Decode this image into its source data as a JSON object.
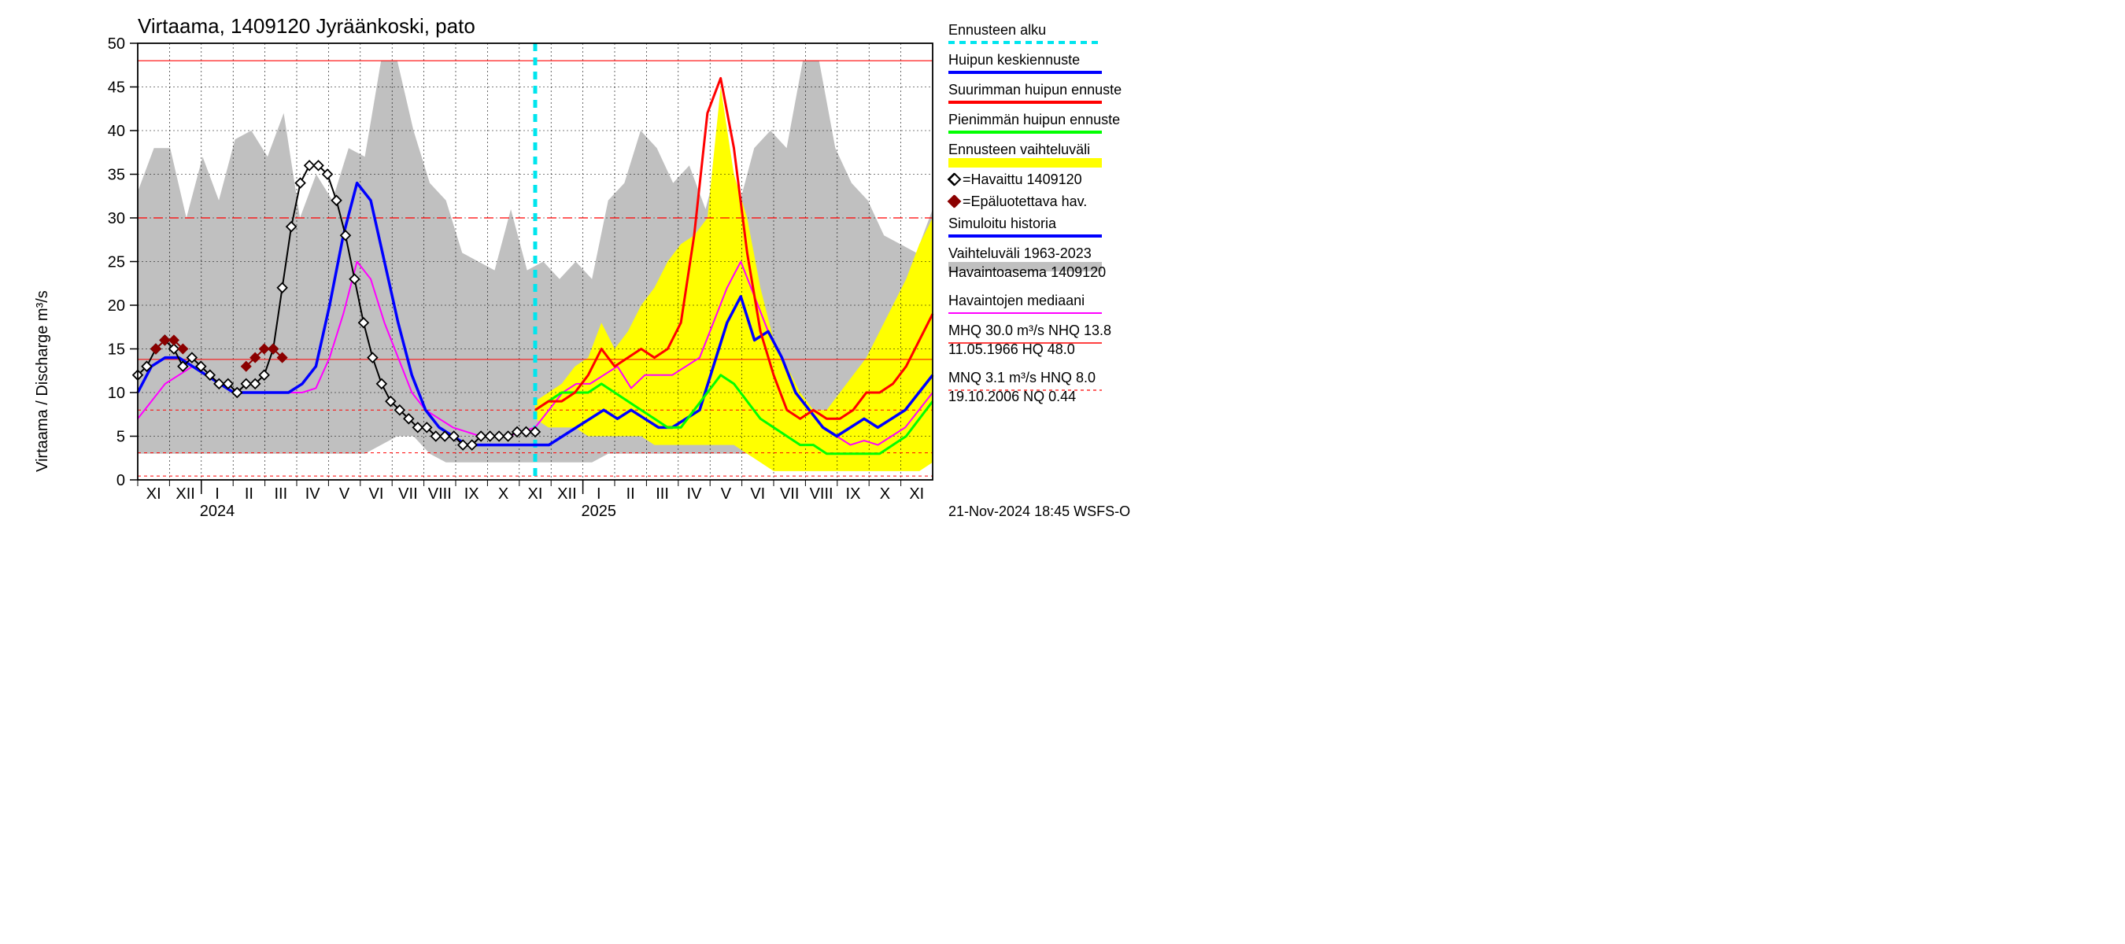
{
  "chart": {
    "type": "line",
    "title": "Virtaama, 1409120 Jyräänkoski, pato",
    "ylabel": "Virtaama / Discharge    m³/s",
    "title_fontsize": 26,
    "label_fontsize": 20,
    "tick_fontsize": 20,
    "legend_fontsize": 18,
    "background_color": "#ffffff",
    "plot_background": "#ffffff",
    "grid_color": "#000000",
    "grid_dash": "2,3",
    "axis_color": "#000000",
    "ylim": [
      0,
      50
    ],
    "ytick_step": 5,
    "yticks": [
      0,
      5,
      10,
      15,
      20,
      25,
      30,
      35,
      40,
      45,
      50
    ],
    "xticks_months": [
      "XI",
      "XII",
      "I",
      "II",
      "III",
      "IV",
      "V",
      "VI",
      "VII",
      "VIII",
      "IX",
      "X",
      "XI",
      "XII",
      "I",
      "II",
      "III",
      "IV",
      "V",
      "VI",
      "VII",
      "VIII",
      "IX",
      "X",
      "XI"
    ],
    "year_labels": {
      "2024": 3,
      "2025": 15
    },
    "forecast_start_index": 12.5,
    "reference_lines": {
      "HQ": {
        "value": 48.0,
        "color": "#ff0000",
        "dash": "none",
        "width": 1.2
      },
      "MHQ": {
        "value": 30.0,
        "color": "#ff0000",
        "dash": "12,8",
        "width": 1.2
      },
      "NHQ": {
        "value": 13.8,
        "color": "#ff0000",
        "dash": "none",
        "width": 1.0
      },
      "HNQ": {
        "value": 8.0,
        "color": "#ff0000",
        "dash": "4,4",
        "width": 1.0
      },
      "MNQ": {
        "value": 3.1,
        "color": "#ff0000",
        "dash": "4,4",
        "width": 1.0
      },
      "NQ": {
        "value": 0.44,
        "color": "#ff0000",
        "dash": "4,4",
        "width": 1.0
      }
    },
    "series": {
      "historical_range": {
        "color": "#c0c0c0",
        "upper": [
          33,
          38,
          38,
          30,
          37,
          32,
          39,
          40,
          37,
          42,
          30,
          35,
          32,
          38,
          37,
          48,
          48,
          40,
          34,
          32,
          26,
          25,
          24,
          31,
          24,
          25,
          23,
          25,
          23,
          32,
          34,
          40,
          38,
          34,
          36,
          31,
          38,
          31,
          38,
          40,
          38,
          48,
          48,
          38,
          34,
          32,
          28,
          27,
          26,
          31
        ],
        "lower": [
          3,
          3,
          3,
          3,
          3,
          3,
          3,
          3,
          3,
          3,
          3,
          3,
          3,
          3,
          3,
          4,
          5,
          5,
          3,
          2,
          2,
          2,
          2,
          2,
          2,
          2,
          2,
          2,
          2,
          3,
          3,
          3,
          3,
          3,
          3,
          3,
          3,
          3,
          3,
          3,
          4,
          5,
          5,
          3,
          2,
          2,
          2,
          2,
          2,
          2
        ]
      },
      "forecast_range": {
        "color": "#ffff00",
        "start_index": 25,
        "upper": [
          9,
          10,
          11,
          13,
          14,
          18,
          15,
          17,
          20,
          22,
          25,
          27,
          28,
          30,
          45,
          35,
          30,
          22,
          16,
          13,
          10,
          8,
          8,
          10,
          12,
          14,
          17,
          20,
          23,
          27,
          30
        ],
        "lower": [
          7,
          6,
          6,
          6,
          5,
          5,
          5,
          5,
          5,
          4,
          4,
          4,
          4,
          4,
          4,
          4,
          3,
          2,
          1,
          1,
          1,
          1,
          1,
          1,
          1,
          1,
          1,
          1,
          1,
          1,
          2
        ]
      },
      "simulated_history": {
        "color": "#0000ff",
        "width": 3.5,
        "data": [
          10,
          13,
          14,
          14,
          13,
          12,
          11,
          10,
          10,
          10,
          10,
          10,
          11,
          13,
          20,
          28,
          34,
          32,
          25,
          18,
          12,
          8,
          6,
          5,
          4,
          4,
          4,
          4,
          4,
          4,
          4,
          5,
          6,
          7,
          8,
          7,
          8,
          7,
          6,
          6,
          7,
          8,
          13,
          18,
          21,
          16,
          17,
          14,
          10,
          8,
          6,
          5,
          6,
          7,
          6,
          7,
          8,
          10,
          12
        ]
      },
      "median_obs": {
        "color": "#ff00ff",
        "width": 2,
        "data": [
          7,
          9,
          11,
          12,
          13,
          12,
          11,
          10,
          10,
          10,
          10,
          10,
          10,
          10.5,
          14,
          19,
          25,
          23,
          18,
          14,
          10,
          8,
          7,
          6,
          5.5,
          5,
          5,
          5,
          5.5,
          6,
          8,
          10,
          11,
          11,
          12,
          13,
          10.5,
          12,
          12,
          12,
          13,
          14,
          18,
          22,
          25,
          21,
          17,
          14,
          10,
          8,
          6,
          5,
          4,
          4.5,
          4,
          5,
          6,
          8,
          10
        ]
      },
      "peak_forecast_mean": {
        "color": "#0000ff",
        "width": 3.5,
        "start_index": 25,
        "data": [
          7,
          8,
          7,
          8,
          7,
          6,
          6,
          7,
          8,
          13,
          18,
          21,
          16,
          17,
          14,
          10,
          8,
          6,
          5,
          6,
          7,
          6,
          7,
          8,
          10,
          12
        ]
      },
      "peak_forecast_max": {
        "color": "#ff0000",
        "width": 3,
        "start_index": 25,
        "data": [
          8,
          9,
          9,
          10,
          12,
          15,
          13,
          14,
          15,
          14,
          15,
          18,
          28,
          42,
          46,
          38,
          26,
          17,
          12,
          8,
          7,
          8,
          7,
          7,
          8,
          10,
          10,
          11,
          13,
          16,
          19
        ]
      },
      "peak_forecast_min": {
        "color": "#00ff00",
        "width": 3,
        "start_index": 25,
        "data": [
          8,
          9,
          10,
          10,
          10,
          11,
          10,
          9,
          8,
          7,
          6,
          6,
          8,
          10,
          12,
          11,
          9,
          7,
          6,
          5,
          4,
          4,
          3,
          3,
          3,
          3,
          3,
          4,
          5,
          7,
          9
        ]
      },
      "observed": {
        "color": "#000000",
        "marker": "diamond",
        "marker_size": 6,
        "width": 2,
        "data": [
          12,
          13,
          15,
          16,
          15,
          13,
          14,
          13,
          12,
          11,
          11,
          10,
          11,
          11,
          12,
          15,
          22,
          29,
          34,
          36,
          36,
          35,
          32,
          28,
          23,
          18,
          14,
          11,
          9,
          8,
          7,
          6,
          6,
          5,
          5,
          5,
          4,
          4,
          5,
          5,
          5,
          5,
          5.5,
          5.5,
          5.5
        ]
      },
      "unreliable": {
        "color": "#8b0000",
        "marker": "diamond",
        "marker_size": 6,
        "width": 2,
        "segments": [
          {
            "start": 2,
            "data": [
              15,
              16,
              16,
              15
            ]
          },
          {
            "start": 12,
            "data": [
              13,
              14,
              15,
              15,
              14
            ]
          }
        ]
      }
    },
    "legend": [
      {
        "label": "Ennusteen alku",
        "type": "line",
        "color": "#00e5ee",
        "dash": "8,6",
        "width": 4
      },
      {
        "label": "Huipun keskiennuste",
        "type": "line",
        "color": "#0000ff",
        "width": 4
      },
      {
        "label": "Suurimman huipun ennuste",
        "type": "line",
        "color": "#ff0000",
        "width": 4
      },
      {
        "label": "Pienimmän huipun ennuste",
        "type": "line",
        "color": "#00ff00",
        "width": 4
      },
      {
        "label": "Ennusteen vaihteluväli",
        "type": "band",
        "color": "#ffff00"
      },
      {
        "label": "=Havaittu 1409120",
        "type": "marker",
        "color": "#000000",
        "shape": "diamond"
      },
      {
        "label": "=Epäluotettava hav.",
        "type": "marker",
        "color": "#8b0000",
        "shape": "diamond"
      },
      {
        "label": "Simuloitu historia",
        "type": "line",
        "color": "#0000ff",
        "width": 4
      },
      {
        "label": "Vaihteluväli 1963-2023",
        "type": "band",
        "color": "#c0c0c0",
        "sublabel": " Havaintoasema 1409120"
      },
      {
        "label": "Havaintojen mediaani",
        "type": "line",
        "color": "#ff00ff",
        "width": 2
      },
      {
        "label": "MHQ 30.0 m³/s NHQ 13.8",
        "type": "line",
        "color": "#ff0000",
        "width": 1.5,
        "sublabel": "11.05.1966 HQ 48.0"
      },
      {
        "label": "MNQ  3.1 m³/s HNQ  8.0",
        "type": "line",
        "color": "#ff0000",
        "width": 1.2,
        "dash": "4,4",
        "sublabel": "19.10.2006 NQ 0.44"
      }
    ],
    "footer": "21-Nov-2024 18:45 WSFS-O"
  }
}
